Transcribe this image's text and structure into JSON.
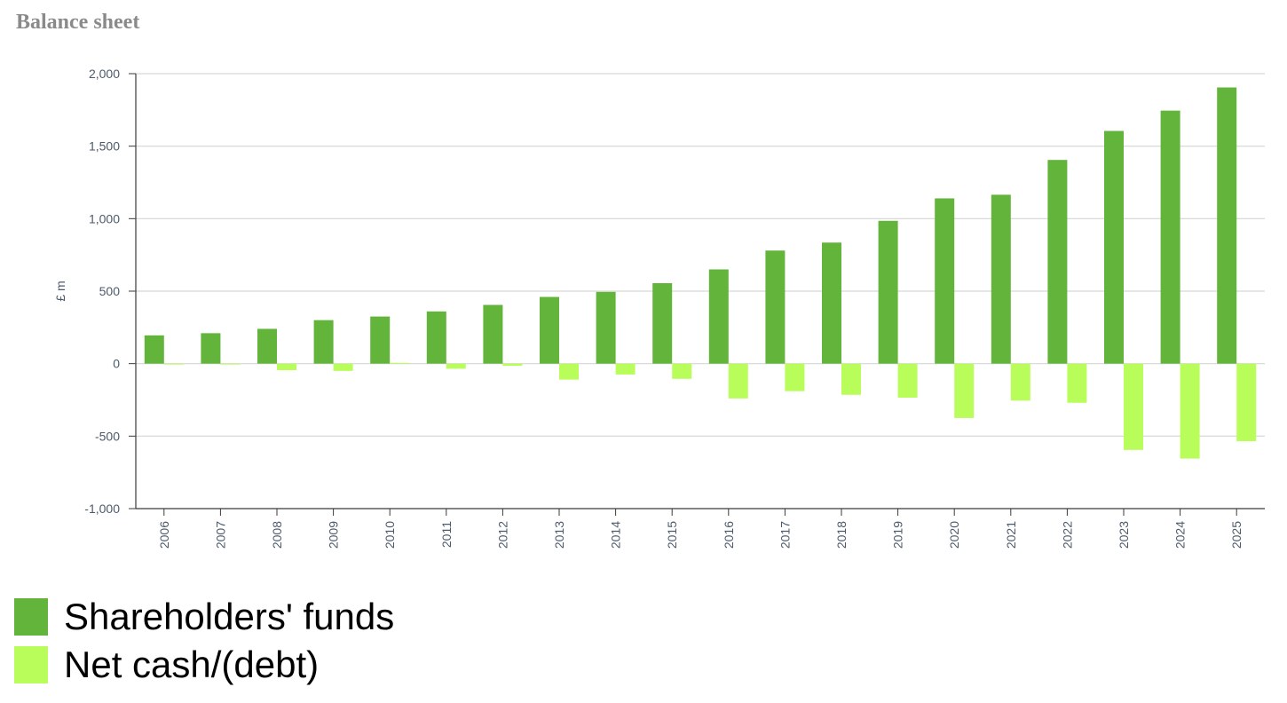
{
  "chart_data": {
    "type": "bar",
    "title": "Balance sheet",
    "ylabel": "£ m",
    "xlabel": "",
    "ylim": [
      -1000,
      2000
    ],
    "yticks": [
      2000,
      1500,
      1000,
      500,
      0,
      -500,
      -1000
    ],
    "ytick_labels": [
      "2,000",
      "1,500",
      "1,000",
      "500",
      "0",
      "-500",
      "-1,000"
    ],
    "grid": true,
    "legend_position": "bottom-left",
    "categories": [
      "2006",
      "2007",
      "2008",
      "2009",
      "2010",
      "2011",
      "2012",
      "2013",
      "2014",
      "2015",
      "2016",
      "2017",
      "2018",
      "2019",
      "2020",
      "2021",
      "2022",
      "2023",
      "2024",
      "2025"
    ],
    "series": [
      {
        "name": "Shareholders' funds",
        "color": "#62b53a",
        "values": [
          195,
          210,
          240,
          300,
          325,
          360,
          405,
          460,
          495,
          555,
          650,
          780,
          835,
          985,
          1140,
          1165,
          1405,
          1605,
          1745,
          1905
        ]
      },
      {
        "name": "Net cash/(debt)",
        "color": "#b9fd5a",
        "values": [
          0,
          -5,
          -45,
          -50,
          5,
          -35,
          -15,
          -110,
          -75,
          -105,
          -240,
          -190,
          -215,
          -235,
          -375,
          -255,
          -270,
          -595,
          -655,
          -535
        ]
      }
    ]
  }
}
